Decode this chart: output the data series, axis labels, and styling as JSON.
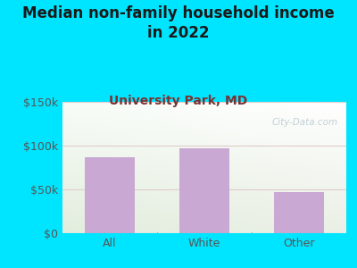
{
  "title": "Median non-family household income\nin 2022",
  "subtitle": "University Park, MD",
  "categories": [
    "All",
    "White",
    "Other"
  ],
  "values": [
    87000,
    97000,
    47000
  ],
  "bar_color": "#c9a8d4",
  "ylim": [
    0,
    150000
  ],
  "yticks": [
    0,
    50000,
    100000,
    150000
  ],
  "ytick_labels": [
    "$0",
    "$50k",
    "$100k",
    "$150k"
  ],
  "bg_outer": "#00e5ff",
  "title_color": "#1a1a1a",
  "subtitle_color": "#7a3333",
  "watermark": "City-Data.com",
  "xlabel_color": "#555555",
  "ylabel_color": "#555555",
  "grid_color": "#e0cccc",
  "title_fontsize": 12,
  "subtitle_fontsize": 10,
  "tick_fontsize": 9
}
